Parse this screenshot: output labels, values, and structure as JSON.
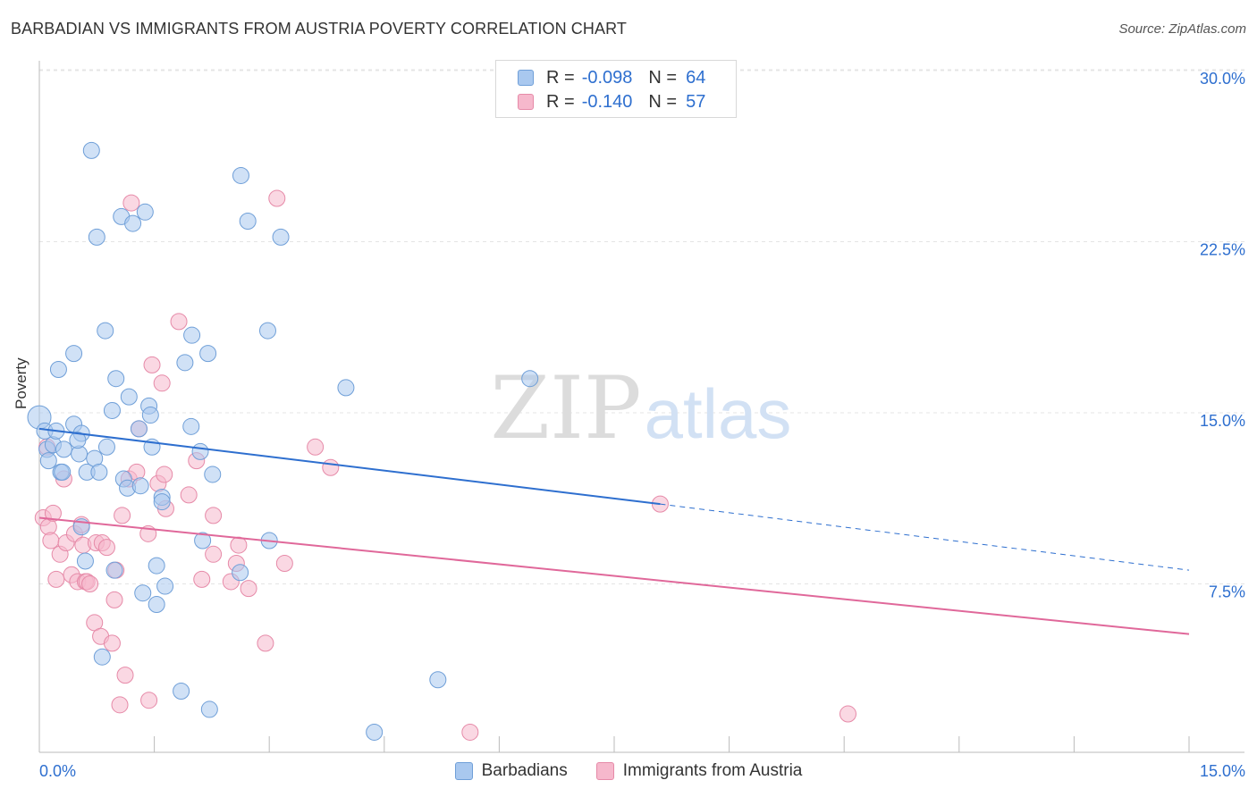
{
  "header": {
    "title": "BARBADIAN VS IMMIGRANTS FROM AUSTRIA POVERTY CORRELATION CHART",
    "source": "Source: ZipAtlas.com"
  },
  "watermark": {
    "zip": "ZIP",
    "atlas": "atlas"
  },
  "legend": {
    "r_label": "R =",
    "n_label": "N =",
    "rows": [
      {
        "r": "-0.098",
        "n": "64"
      },
      {
        "r": "-0.140",
        "n": "57"
      }
    ]
  },
  "chart_data": {
    "type": "scatter",
    "title": "BARBADIAN VS IMMIGRANTS FROM AUSTRIA POVERTY CORRELATION CHART",
    "ylabel": "Poverty",
    "xlabel": "",
    "xlim": [
      0,
      15
    ],
    "ylim": [
      0,
      31
    ],
    "x_ticks": [
      "0.0%",
      "15.0%"
    ],
    "y_ticks": [
      {
        "value": 7.5,
        "label": "7.5%"
      },
      {
        "value": 15,
        "label": "15.0%"
      },
      {
        "value": 22.5,
        "label": "22.5%"
      },
      {
        "value": 30,
        "label": "30.0%"
      }
    ],
    "grid": "horizontal dashed",
    "colors": {
      "barbadians_fill": "#a9c8ef",
      "barbadians_stroke": "#6f9fd8",
      "barbadians_line": "#2e6fcf",
      "austria_fill": "#f6b8cc",
      "austria_stroke": "#e68aa8",
      "austria_line": "#e0689a",
      "tick_label": "#2e6fcf"
    },
    "series": [
      {
        "name": "Barbadians",
        "trend": {
          "x0": 0,
          "y0": 14.3,
          "x1": 8.1,
          "y1": 11.0,
          "x_dash_end": 15.0,
          "y_dash_end": 8.1
        },
        "points": [
          [
            0.0,
            14.8
          ],
          [
            0.07,
            14.2
          ],
          [
            0.1,
            13.4
          ],
          [
            0.12,
            12.9
          ],
          [
            0.18,
            13.6
          ],
          [
            0.22,
            14.2
          ],
          [
            0.25,
            16.9
          ],
          [
            0.28,
            12.4
          ],
          [
            0.32,
            13.4
          ],
          [
            0.45,
            14.5
          ],
          [
            0.45,
            17.6
          ],
          [
            0.52,
            13.2
          ],
          [
            0.55,
            14.1
          ],
          [
            0.6,
            8.5
          ],
          [
            0.62,
            12.4
          ],
          [
            0.68,
            26.5
          ],
          [
            0.72,
            13.0
          ],
          [
            0.75,
            22.7
          ],
          [
            0.78,
            12.4
          ],
          [
            0.82,
            4.3
          ],
          [
            0.86,
            18.6
          ],
          [
            0.88,
            13.5
          ],
          [
            0.95,
            15.1
          ],
          [
            0.98,
            8.1
          ],
          [
            1.0,
            16.5
          ],
          [
            1.07,
            23.6
          ],
          [
            1.1,
            12.1
          ],
          [
            1.15,
            11.7
          ],
          [
            1.17,
            15.7
          ],
          [
            1.22,
            23.3
          ],
          [
            1.3,
            14.3
          ],
          [
            1.32,
            11.8
          ],
          [
            1.35,
            7.1
          ],
          [
            1.38,
            23.8
          ],
          [
            1.43,
            15.3
          ],
          [
            1.45,
            14.9
          ],
          [
            1.47,
            13.5
          ],
          [
            1.53,
            6.6
          ],
          [
            1.53,
            8.3
          ],
          [
            1.6,
            11.3
          ],
          [
            1.6,
            11.1
          ],
          [
            1.64,
            7.4
          ],
          [
            1.85,
            2.8
          ],
          [
            1.9,
            17.2
          ],
          [
            1.98,
            14.4
          ],
          [
            1.99,
            18.4
          ],
          [
            2.1,
            13.3
          ],
          [
            2.13,
            9.4
          ],
          [
            2.2,
            17.6
          ],
          [
            2.22,
            2.0
          ],
          [
            2.26,
            12.3
          ],
          [
            2.62,
            8.0
          ],
          [
            2.63,
            25.4
          ],
          [
            2.72,
            23.4
          ],
          [
            2.98,
            18.6
          ],
          [
            3.0,
            9.4
          ],
          [
            3.15,
            22.7
          ],
          [
            4.0,
            16.1
          ],
          [
            4.37,
            1.0
          ],
          [
            5.2,
            3.3
          ],
          [
            6.4,
            16.5
          ],
          [
            0.3,
            12.4
          ],
          [
            0.5,
            13.8
          ],
          [
            0.55,
            10.0
          ]
        ]
      },
      {
        "name": "Immigrants from Austria",
        "trend": {
          "x0": 0,
          "y0": 10.4,
          "x1": 15.0,
          "y1": 5.3
        },
        "points": [
          [
            0.05,
            10.4
          ],
          [
            0.1,
            13.5
          ],
          [
            0.12,
            10.0
          ],
          [
            0.15,
            9.4
          ],
          [
            0.18,
            10.6
          ],
          [
            0.22,
            7.7
          ],
          [
            0.27,
            8.8
          ],
          [
            0.32,
            12.1
          ],
          [
            0.35,
            9.3
          ],
          [
            0.42,
            7.9
          ],
          [
            0.46,
            9.7
          ],
          [
            0.5,
            7.6
          ],
          [
            0.55,
            10.1
          ],
          [
            0.57,
            9.2
          ],
          [
            0.6,
            7.6
          ],
          [
            0.62,
            7.6
          ],
          [
            0.66,
            7.5
          ],
          [
            0.72,
            5.8
          ],
          [
            0.74,
            9.3
          ],
          [
            0.8,
            5.2
          ],
          [
            0.82,
            9.3
          ],
          [
            0.88,
            9.1
          ],
          [
            0.95,
            4.9
          ],
          [
            0.98,
            6.8
          ],
          [
            1.0,
            8.1
          ],
          [
            1.05,
            2.2
          ],
          [
            1.08,
            10.5
          ],
          [
            1.12,
            3.5
          ],
          [
            1.17,
            12.1
          ],
          [
            1.2,
            24.2
          ],
          [
            1.27,
            12.4
          ],
          [
            1.3,
            14.3
          ],
          [
            1.42,
            9.7
          ],
          [
            1.43,
            2.4
          ],
          [
            1.47,
            17.1
          ],
          [
            1.55,
            11.9
          ],
          [
            1.6,
            16.3
          ],
          [
            1.63,
            12.3
          ],
          [
            1.65,
            10.8
          ],
          [
            1.82,
            19.0
          ],
          [
            1.95,
            11.4
          ],
          [
            2.05,
            12.9
          ],
          [
            2.12,
            7.7
          ],
          [
            2.27,
            8.8
          ],
          [
            2.27,
            10.5
          ],
          [
            2.5,
            7.6
          ],
          [
            2.57,
            8.4
          ],
          [
            2.6,
            9.2
          ],
          [
            2.73,
            7.3
          ],
          [
            2.95,
            4.9
          ],
          [
            3.1,
            24.4
          ],
          [
            3.2,
            8.4
          ],
          [
            3.6,
            13.5
          ],
          [
            3.8,
            12.6
          ],
          [
            5.62,
            1.0
          ],
          [
            8.1,
            11.0
          ],
          [
            10.55,
            1.8
          ]
        ]
      }
    ]
  }
}
